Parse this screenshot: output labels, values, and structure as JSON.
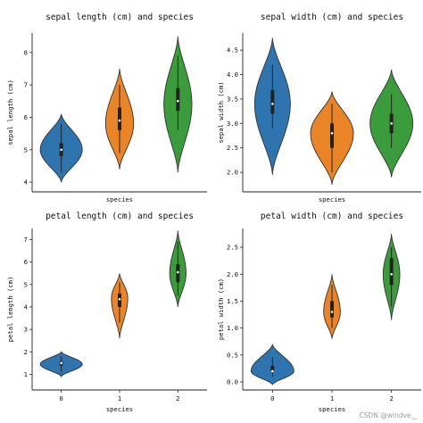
{
  "watermark": "CSDN @windve__",
  "colors": [
    "#2e75b0",
    "#ea8426",
    "#3a9c3a"
  ],
  "chart_data": [
    {
      "type": "violin",
      "title": "sepal length (cm) and species",
      "xlabel": "species",
      "ylabel": "sepal length (cm)",
      "categories": [
        "0",
        "1",
        "2"
      ],
      "show_x_ticklabels": false,
      "ylim": [
        3.7,
        8.6
      ],
      "yticks": [
        4,
        5,
        6,
        7,
        8
      ],
      "ytick_labels": [
        "4",
        "5",
        "6",
        "7",
        "8"
      ],
      "violins": [
        {
          "category": "0",
          "min": 4.0,
          "max": 6.1,
          "q1": 4.8,
          "median": 5.0,
          "q3": 5.2,
          "whisker_low": 4.3,
          "whisker_high": 5.8,
          "mode": 5.0,
          "width": 0.9
        },
        {
          "category": "1",
          "min": 4.4,
          "max": 7.5,
          "q1": 5.6,
          "median": 5.9,
          "q3": 6.3,
          "whisker_low": 4.9,
          "whisker_high": 7.0,
          "mode": 5.8,
          "width": 0.6
        },
        {
          "category": "2",
          "min": 4.3,
          "max": 8.5,
          "q1": 6.2,
          "median": 6.5,
          "q3": 6.9,
          "whisker_low": 5.6,
          "whisker_high": 7.9,
          "mode": 6.4,
          "width": 0.6
        }
      ]
    },
    {
      "type": "violin",
      "title": "sepal width (cm) and species",
      "xlabel": "species",
      "ylabel": "sepal width (cm)",
      "categories": [
        "0",
        "1",
        "2"
      ],
      "show_x_ticklabels": false,
      "ylim": [
        1.6,
        4.85
      ],
      "yticks": [
        2.0,
        2.5,
        3.0,
        3.5,
        4.0,
        4.5
      ],
      "ytick_labels": [
        "2.0",
        "2.5",
        "3.0",
        "3.5",
        "4.0",
        "4.5"
      ],
      "violins": [
        {
          "category": "0",
          "min": 1.95,
          "max": 4.75,
          "q1": 3.2,
          "median": 3.4,
          "q3": 3.68,
          "whisker_low": 2.9,
          "whisker_high": 4.2,
          "mode": 3.4,
          "width": 0.75
        },
        {
          "category": "1",
          "min": 1.75,
          "max": 3.65,
          "q1": 2.5,
          "median": 2.8,
          "q3": 3.0,
          "whisker_low": 2.0,
          "whisker_high": 3.4,
          "mode": 2.8,
          "width": 0.9
        },
        {
          "category": "2",
          "min": 1.9,
          "max": 4.1,
          "q1": 2.8,
          "median": 3.0,
          "q3": 3.2,
          "whisker_low": 2.5,
          "whisker_high": 3.6,
          "mode": 3.0,
          "width": 0.9
        }
      ]
    },
    {
      "type": "violin",
      "title": "petal length (cm) and species",
      "xlabel": "species",
      "ylabel": "petal length (cm)",
      "categories": [
        "0",
        "1",
        "2"
      ],
      "show_x_ticklabels": true,
      "ylim": [
        0.3,
        7.5
      ],
      "yticks": [
        1,
        2,
        3,
        4,
        5,
        6,
        7
      ],
      "ytick_labels": [
        "1",
        "2",
        "3",
        "4",
        "5",
        "6",
        "7"
      ],
      "violins": [
        {
          "category": "0",
          "min": 0.9,
          "max": 2.0,
          "q1": 1.4,
          "median": 1.5,
          "q3": 1.58,
          "whisker_low": 1.1,
          "whisker_high": 1.8,
          "mode": 1.45,
          "width": 0.9
        },
        {
          "category": "1",
          "min": 2.6,
          "max": 5.5,
          "q1": 4.0,
          "median": 4.35,
          "q3": 4.6,
          "whisker_low": 3.3,
          "whisker_high": 5.1,
          "mode": 4.4,
          "width": 0.35
        },
        {
          "category": "2",
          "min": 4.0,
          "max": 7.4,
          "q1": 5.1,
          "median": 5.55,
          "q3": 5.9,
          "whisker_low": 4.5,
          "whisker_high": 6.9,
          "mode": 5.5,
          "width": 0.35
        }
      ]
    },
    {
      "type": "violin",
      "title": "petal width (cm) and species",
      "xlabel": "species",
      "ylabel": "petal width (cm)",
      "categories": [
        "0",
        "1",
        "2"
      ],
      "show_x_ticklabels": true,
      "ylim": [
        -0.15,
        2.85
      ],
      "yticks": [
        0.0,
        0.5,
        1.0,
        1.5,
        2.0,
        2.5
      ],
      "ytick_labels": [
        "0.0",
        "0.5",
        "1.0",
        "1.5",
        "2.0",
        "2.5"
      ],
      "violins": [
        {
          "category": "0",
          "min": -0.05,
          "max": 0.7,
          "q1": 0.2,
          "median": 0.2,
          "q3": 0.3,
          "whisker_low": 0.1,
          "whisker_high": 0.45,
          "mode": 0.2,
          "width": 0.9
        },
        {
          "category": "1",
          "min": 0.8,
          "max": 2.0,
          "q1": 1.2,
          "median": 1.3,
          "q3": 1.5,
          "whisker_low": 1.0,
          "whisker_high": 1.8,
          "mode": 1.3,
          "width": 0.35
        },
        {
          "category": "2",
          "min": 1.15,
          "max": 2.75,
          "q1": 1.8,
          "median": 2.0,
          "q3": 2.3,
          "whisker_low": 1.4,
          "whisker_high": 2.5,
          "mode": 2.0,
          "width": 0.35
        }
      ]
    }
  ]
}
